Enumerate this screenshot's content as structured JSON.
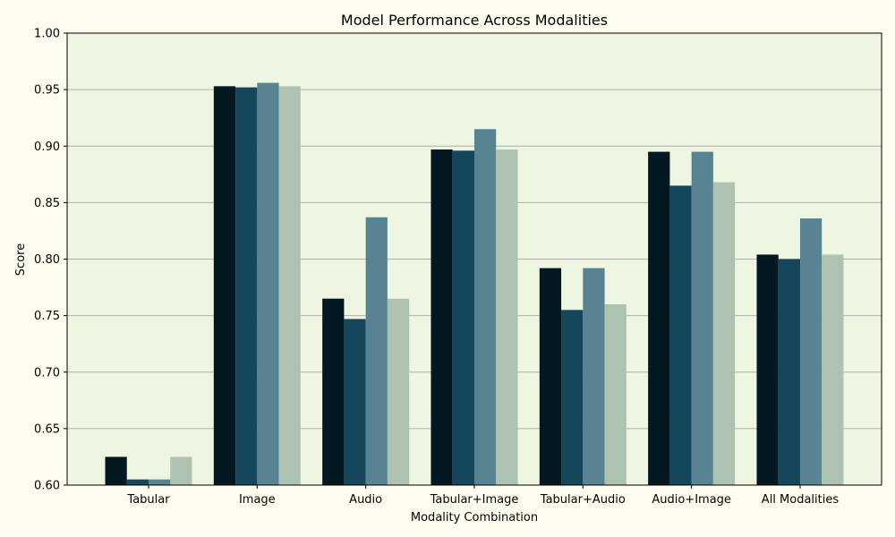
{
  "chart_data": {
    "type": "bar",
    "title": "Model Performance Across Modalities",
    "xlabel": "Modality Combination",
    "ylabel": "Score",
    "ylim": [
      0.6,
      1.0
    ],
    "yticks": [
      "0.60",
      "0.65",
      "0.70",
      "0.75",
      "0.80",
      "0.85",
      "0.90",
      "0.95",
      "1.00"
    ],
    "grid": "horizontal",
    "legend": "none",
    "categories": [
      "Tabular",
      "Image",
      "Audio",
      "Tabular+Image",
      "Tabular+Audio",
      "Audio+Image",
      "All Modalities"
    ],
    "series": [
      {
        "color": "#031820",
        "values": [
          0.625,
          0.953,
          0.765,
          0.897,
          0.792,
          0.895,
          0.804
        ]
      },
      {
        "color": "#14475c",
        "values": [
          0.605,
          0.952,
          0.747,
          0.896,
          0.755,
          0.865,
          0.8
        ]
      },
      {
        "color": "#588393",
        "values": [
          0.605,
          0.956,
          0.837,
          0.915,
          0.792,
          0.895,
          0.836
        ]
      },
      {
        "color": "#adc2b1",
        "values": [
          0.625,
          0.953,
          0.765,
          0.897,
          0.76,
          0.868,
          0.804
        ]
      }
    ],
    "colors": {
      "figure_bg": "#fffdf0",
      "plot_bg": "#eef5e0",
      "grid": "#b0b0b0"
    }
  }
}
